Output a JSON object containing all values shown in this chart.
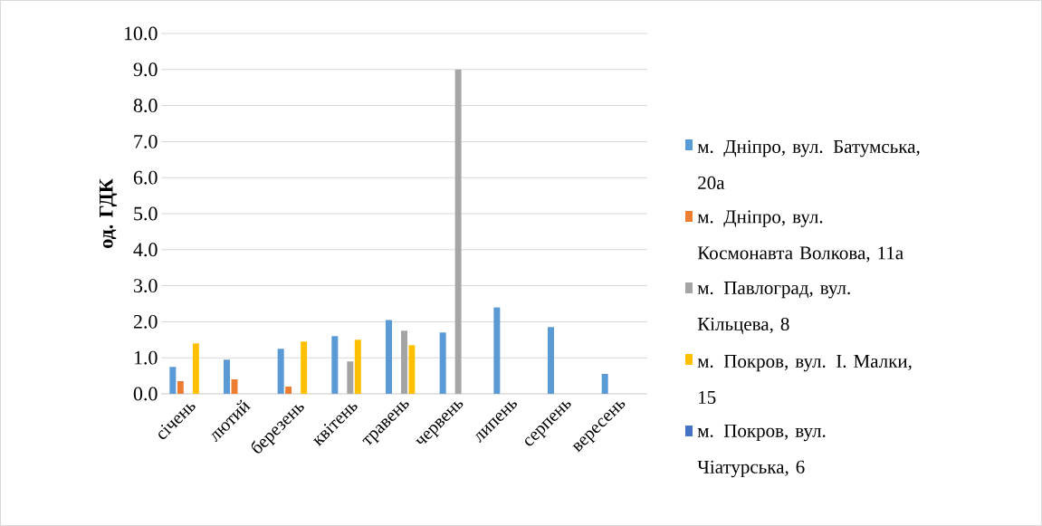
{
  "chart_data": {
    "type": "bar",
    "ylabel": "од. ГДК",
    "categories": [
      "січень",
      "лютий",
      "березень",
      "квітень",
      "травень",
      "червень",
      "липень",
      "серпень",
      "вересень"
    ],
    "series": [
      {
        "name": "м. Дніпро, вул. Батумська, 20а",
        "color": "#5b9bd5",
        "values": [
          0.75,
          0.95,
          1.25,
          1.6,
          2.05,
          1.7,
          2.4,
          1.85,
          0.55
        ]
      },
      {
        "name": "м. Дніпро, вул. Космонавта Волкова, 11а",
        "color": "#ed7d31",
        "values": [
          0.35,
          0.4,
          0.2,
          null,
          null,
          null,
          null,
          null,
          null
        ]
      },
      {
        "name": "м. Павлоград, вул. Кільцева, 8",
        "color": "#a5a5a5",
        "values": [
          null,
          null,
          null,
          0.9,
          1.75,
          9.0,
          null,
          null,
          null
        ]
      },
      {
        "name": "м. Покров, вул. І. Малки, 15",
        "color": "#ffc000",
        "values": [
          1.4,
          null,
          1.45,
          1.5,
          1.35,
          null,
          null,
          null,
          null
        ]
      },
      {
        "name": "м. Покров, вул. Чіатурська, 6",
        "color": "#4472c4",
        "values": [
          null,
          null,
          null,
          null,
          null,
          null,
          null,
          null,
          null
        ]
      }
    ],
    "ylim": [
      0,
      10
    ],
    "yticks": [
      {
        "value": 0,
        "label": "0.0"
      },
      {
        "value": 1,
        "label": "1.0"
      },
      {
        "value": 2,
        "label": "2.0"
      },
      {
        "value": 3,
        "label": "3.0"
      },
      {
        "value": 4,
        "label": "4.0"
      },
      {
        "value": 5,
        "label": "5.0"
      },
      {
        "value": 6,
        "label": "6.0"
      },
      {
        "value": 7,
        "label": "7.0"
      },
      {
        "value": 8,
        "label": "8.0"
      },
      {
        "value": 9,
        "label": "9.0"
      },
      {
        "value": 10,
        "label": "10.0"
      }
    ],
    "grid": "y",
    "legend": "right"
  }
}
